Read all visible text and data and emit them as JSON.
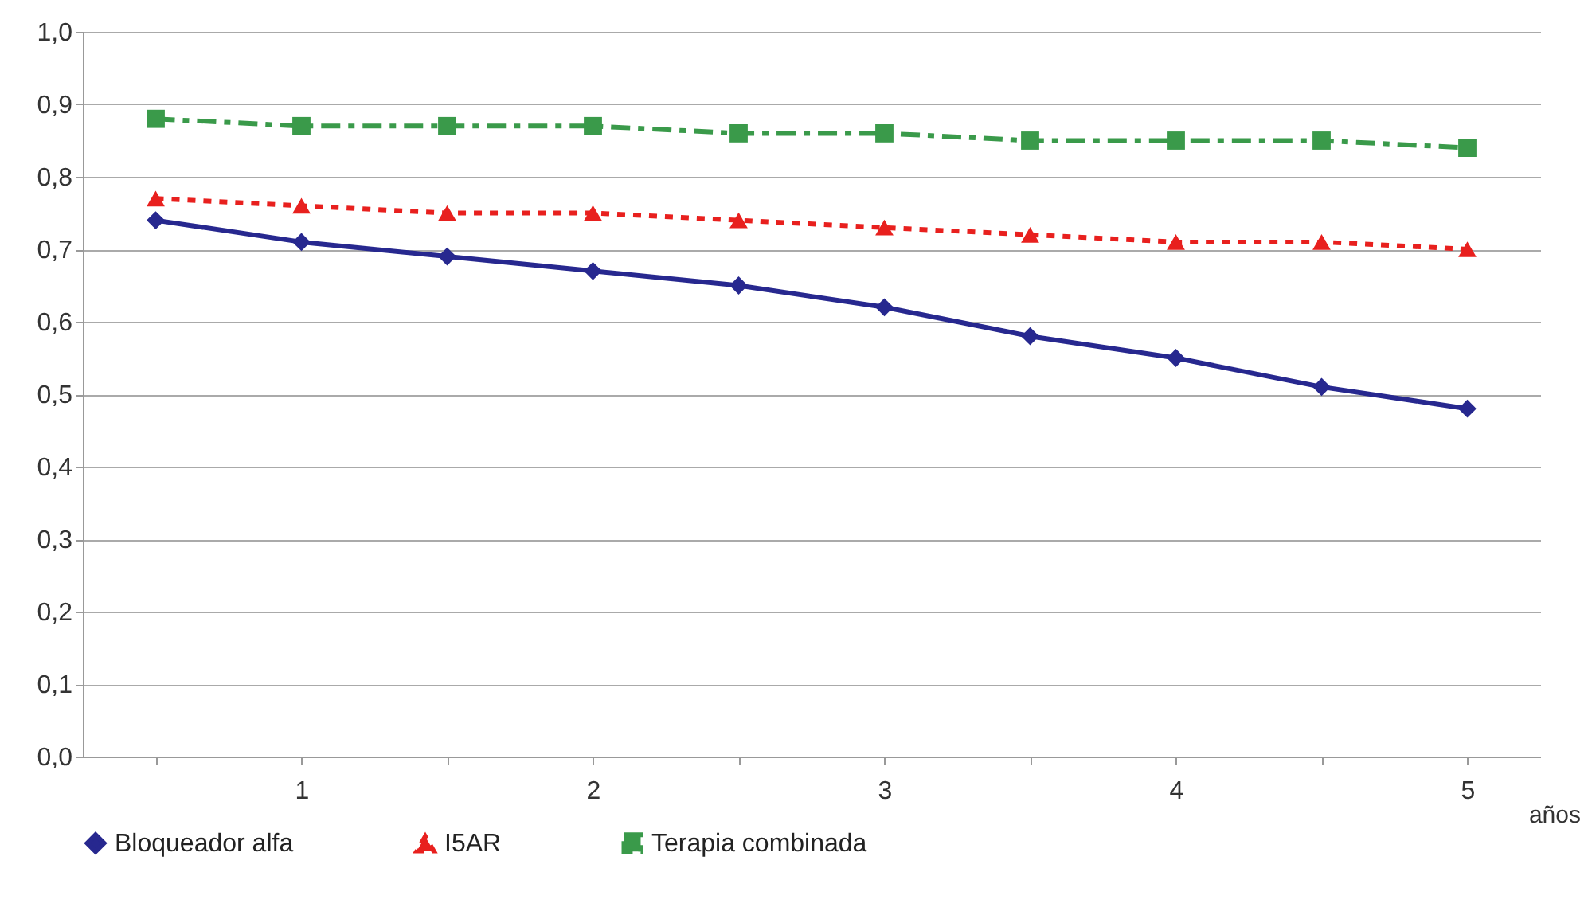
{
  "chart_data": {
    "type": "line",
    "xlabel": "años",
    "categories": [
      null,
      "1",
      null,
      "2",
      null,
      "3",
      null,
      "4",
      null,
      "5"
    ],
    "ylim": [
      0,
      1
    ],
    "yticks": [
      {
        "value": 0,
        "label": "0,0"
      },
      {
        "value": 0.1,
        "label": "0,1"
      },
      {
        "value": 0.2,
        "label": "0,2"
      },
      {
        "value": 0.3,
        "label": "0,3"
      },
      {
        "value": 0.4,
        "label": "0,4"
      },
      {
        "value": 0.5,
        "label": "0,5"
      },
      {
        "value": 0.6,
        "label": "0,6"
      },
      {
        "value": 0.7,
        "label": "0,7"
      },
      {
        "value": 0.8,
        "label": "0,8"
      },
      {
        "value": 0.9,
        "label": "0,9"
      },
      {
        "value": 1,
        "label": "1,0"
      }
    ],
    "grid": "y",
    "legend": "bottom",
    "series": [
      {
        "name": "Bloqueador alfa",
        "color": "#27288f",
        "marker": "diamond",
        "line_style": "solid",
        "values": [
          0.74,
          0.71,
          0.69,
          0.67,
          0.65,
          0.62,
          0.58,
          0.55,
          0.51,
          0.48
        ]
      },
      {
        "name": "I5AR",
        "color": "#e8201e",
        "marker": "triangle",
        "line_style": "dotted",
        "values": [
          0.77,
          0.76,
          0.75,
          0.75,
          0.74,
          0.73,
          0.72,
          0.71,
          0.71,
          0.7
        ]
      },
      {
        "name": "Terapia combinada",
        "color": "#3a9a4a",
        "marker": "square",
        "line_style": "dashed",
        "values": [
          0.88,
          0.87,
          0.87,
          0.87,
          0.86,
          0.86,
          0.85,
          0.85,
          0.85,
          0.84
        ]
      }
    ]
  }
}
